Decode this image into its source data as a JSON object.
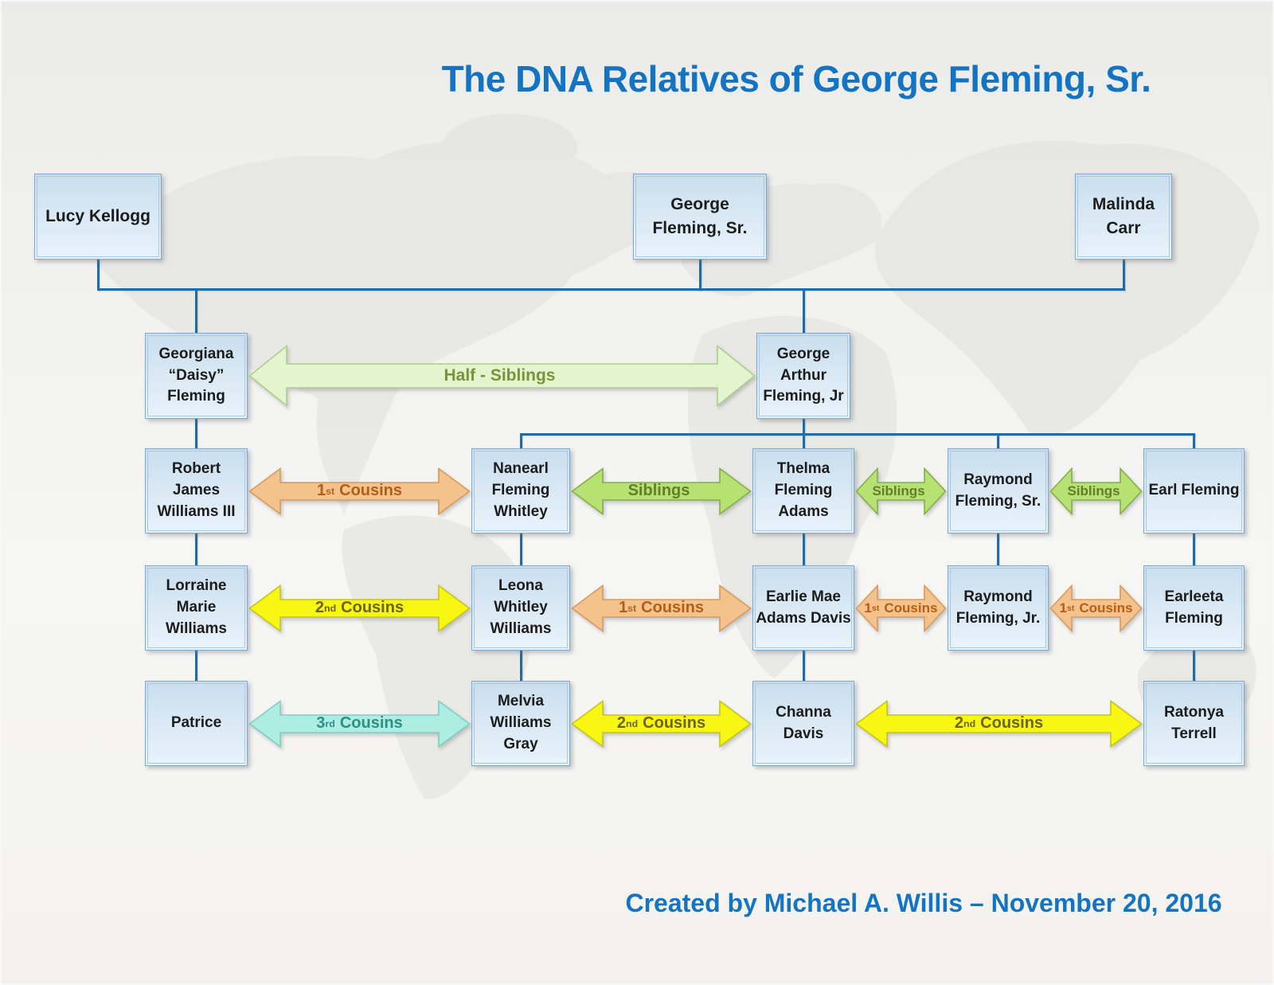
{
  "title": "The DNA Relatives of George Fleming, Sr.",
  "footer": "Created by Michael A. Willis – November 20, 2016",
  "people": {
    "lucy": {
      "name": "Lucy Kellogg"
    },
    "george_sr": {
      "name": "George\nFleming, Sr."
    },
    "malinda": {
      "name": "Malinda\nCarr"
    },
    "georgiana": {
      "name": "Georgiana\n“Daisy”\nFleming"
    },
    "george_jr": {
      "name": "George\nArthur\nFleming, Jr"
    },
    "robert": {
      "name": "Robert James\nWilliams III"
    },
    "nanearl": {
      "name": "Nanearl\nFleming\nWhitley"
    },
    "thelma": {
      "name": "Thelma\nFleming\nAdams"
    },
    "raymond_sr": {
      "name": "Raymond\nFleming, Sr."
    },
    "earl": {
      "name": "Earl Fleming"
    },
    "lorraine": {
      "name": "Lorraine\nMarie\nWilliams"
    },
    "leona": {
      "name": "Leona\nWhitley\nWilliams"
    },
    "earlie": {
      "name": "Earlie Mae\nAdams Davis"
    },
    "raymond_jr": {
      "name": "Raymond\nFleming, Jr."
    },
    "earleeta": {
      "name": "Earleeta\nFleming"
    },
    "patrice": {
      "name": "Patrice"
    },
    "melvia": {
      "name": "Melvia\nWilliams\nGray"
    },
    "channa": {
      "name": "Channa Davis"
    },
    "ratonya": {
      "name": "Ratonya\nTerrell"
    }
  },
  "relations": {
    "half_siblings": {
      "pre": "Half - Siblings",
      "sup": "",
      "post": ""
    },
    "siblings": {
      "pre": "Siblings",
      "sup": "",
      "post": ""
    },
    "cousins_1": {
      "pre": "1",
      "sup": "st",
      "post": "Cousins"
    },
    "cousins_2": {
      "pre": "2",
      "sup": "nd",
      "post": "Cousins"
    },
    "cousins_3": {
      "pre": "3",
      "sup": "rd",
      "post": "Cousins"
    }
  },
  "edges": [
    {
      "from": "georgiana",
      "to": "george_jr",
      "relation": "half_siblings"
    },
    {
      "from": "robert",
      "to": "nanearl",
      "relation": "cousins_1"
    },
    {
      "from": "nanearl",
      "to": "thelma",
      "relation": "siblings"
    },
    {
      "from": "thelma",
      "to": "raymond_sr",
      "relation": "siblings"
    },
    {
      "from": "raymond_sr",
      "to": "earl",
      "relation": "siblings"
    },
    {
      "from": "lorraine",
      "to": "leona",
      "relation": "cousins_2"
    },
    {
      "from": "leona",
      "to": "earlie",
      "relation": "cousins_1"
    },
    {
      "from": "earlie",
      "to": "raymond_jr",
      "relation": "cousins_1"
    },
    {
      "from": "raymond_jr",
      "to": "earleeta",
      "relation": "cousins_1"
    },
    {
      "from": "patrice",
      "to": "melvia",
      "relation": "cousins_3"
    },
    {
      "from": "melvia",
      "to": "channa",
      "relation": "cousins_2"
    },
    {
      "from": "channa",
      "to": "ratonya",
      "relation": "cousins_2"
    }
  ],
  "unions": [
    {
      "partners": [
        "lucy",
        "george_sr",
        "malinda"
      ],
      "children": [
        "georgiana",
        "george_jr"
      ]
    },
    {
      "partners": [
        "george_jr"
      ],
      "children": [
        "nanearl",
        "thelma",
        "raymond_sr",
        "earl"
      ]
    }
  ],
  "descents": [
    [
      "georgiana",
      "robert"
    ],
    [
      "robert",
      "lorraine"
    ],
    [
      "lorraine",
      "patrice"
    ],
    [
      "nanearl",
      "leona"
    ],
    [
      "leona",
      "melvia"
    ],
    [
      "thelma",
      "earlie"
    ],
    [
      "earlie",
      "channa"
    ],
    [
      "raymond_sr",
      "raymond_jr"
    ],
    [
      "earl",
      "earleeta"
    ],
    [
      "earleeta",
      "ratonya"
    ]
  ],
  "colors": {
    "title_blue": "#1474c4",
    "connector_blue": "#1b6dae",
    "node_fill_top": "#cadeee",
    "node_fill_bottom": "#e9f3fa",
    "node_border": "#7fa9cf",
    "arrows": {
      "half_siblings": {
        "fill": "#e4f4cf",
        "stroke": "#abcf8c",
        "text": "#77933c"
      },
      "siblings": {
        "fill": "#b6e173",
        "stroke": "#85ae49",
        "text": "#647e2a"
      },
      "cousins_1": {
        "fill": "#f4c38d",
        "stroke": "#d89a5e",
        "text": "#b55f14"
      },
      "cousins_2": {
        "fill": "#f8f713",
        "stroke": "#c6c41c",
        "text": "#6c6414"
      },
      "cousins_3": {
        "fill": "#aeeee2",
        "stroke": "#7cd0c2",
        "text": "#2e8f86"
      }
    }
  }
}
